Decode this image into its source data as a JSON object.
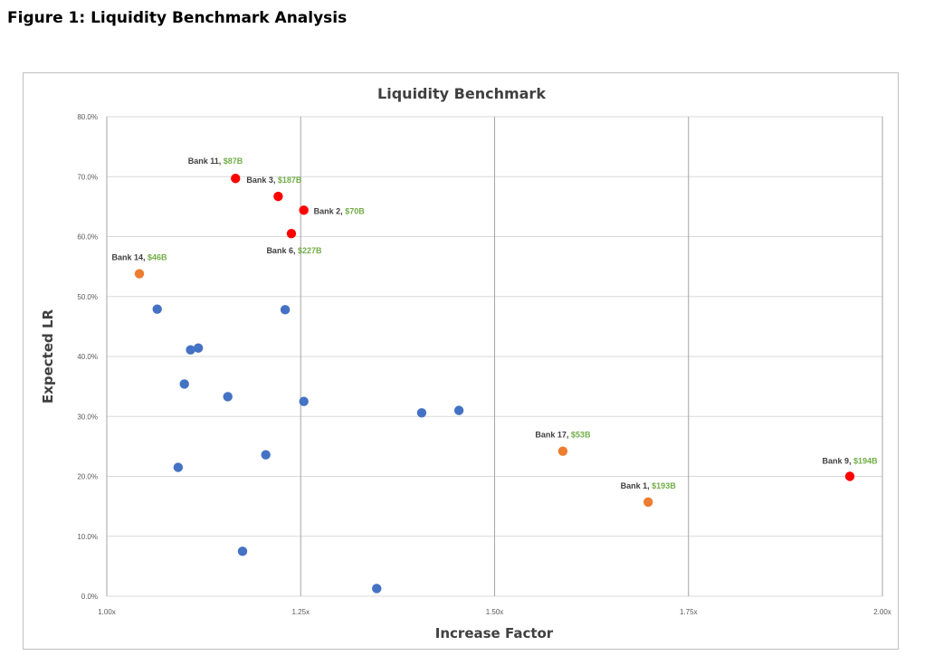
{
  "figure_title": "Figure 1: Liquidity Benchmark Analysis",
  "colors": {
    "blue": "#4472c4",
    "red": "#ff0000",
    "orange": "#ed7d31",
    "label_dark": "#404040",
    "label_green": "#70ad47",
    "grid": "#d9d9d9",
    "vgrid": "#a6a6a6"
  },
  "chart_data": {
    "type": "scatter",
    "title": "Liquidity Benchmark",
    "xlabel": "Increase Factor",
    "ylabel": "Expected LR",
    "xlim": [
      1.0,
      2.0
    ],
    "ylim": [
      0,
      80
    ],
    "x_ticks": [
      1.0,
      1.25,
      1.5,
      1.75,
      2.0
    ],
    "x_tick_labels": [
      "1.00x",
      "1.25x",
      "1.50x",
      "1.75x",
      "2.00x"
    ],
    "y_ticks": [
      0,
      10,
      20,
      30,
      40,
      50,
      60,
      70,
      80
    ],
    "y_tick_labels": [
      "0.0%",
      "10.0%",
      "20.0%",
      "30.0%",
      "40.0%",
      "50.0%",
      "60.0%",
      "70.0%",
      "80.0%"
    ],
    "points": [
      {
        "x": 1.065,
        "y": 47.9,
        "group": "blue"
      },
      {
        "x": 1.108,
        "y": 41.1,
        "group": "blue"
      },
      {
        "x": 1.118,
        "y": 41.4,
        "group": "blue"
      },
      {
        "x": 1.1,
        "y": 35.4,
        "group": "blue"
      },
      {
        "x": 1.156,
        "y": 33.3,
        "group": "blue"
      },
      {
        "x": 1.092,
        "y": 21.5,
        "group": "blue"
      },
      {
        "x": 1.175,
        "y": 7.5,
        "group": "blue"
      },
      {
        "x": 1.205,
        "y": 23.6,
        "group": "blue"
      },
      {
        "x": 1.23,
        "y": 47.8,
        "group": "blue"
      },
      {
        "x": 1.254,
        "y": 32.5,
        "group": "blue"
      },
      {
        "x": 1.348,
        "y": 1.3,
        "group": "blue"
      },
      {
        "x": 1.406,
        "y": 30.6,
        "group": "blue"
      },
      {
        "x": 1.454,
        "y": 31.0,
        "group": "blue"
      },
      {
        "x": 1.166,
        "y": 69.7,
        "group": "red",
        "name": "Bank 11",
        "size": "$87B"
      },
      {
        "x": 1.221,
        "y": 66.7,
        "group": "red",
        "name": "Bank 3",
        "size": "$187B"
      },
      {
        "x": 1.254,
        "y": 64.4,
        "group": "red",
        "name": "Bank 2",
        "size": "$70B"
      },
      {
        "x": 1.238,
        "y": 60.5,
        "group": "red",
        "name": "Bank 6",
        "size": "$227B"
      },
      {
        "x": 1.958,
        "y": 20.0,
        "group": "red",
        "name": "Bank 9",
        "size": "$194B"
      },
      {
        "x": 1.042,
        "y": 53.8,
        "group": "orange",
        "name": "Bank 14",
        "size": "$46B"
      },
      {
        "x": 1.588,
        "y": 24.2,
        "group": "orange",
        "name": "Bank 17",
        "size": "$53B"
      },
      {
        "x": 1.698,
        "y": 15.7,
        "group": "orange",
        "name": "Bank 1",
        "size": "$193B"
      }
    ]
  }
}
